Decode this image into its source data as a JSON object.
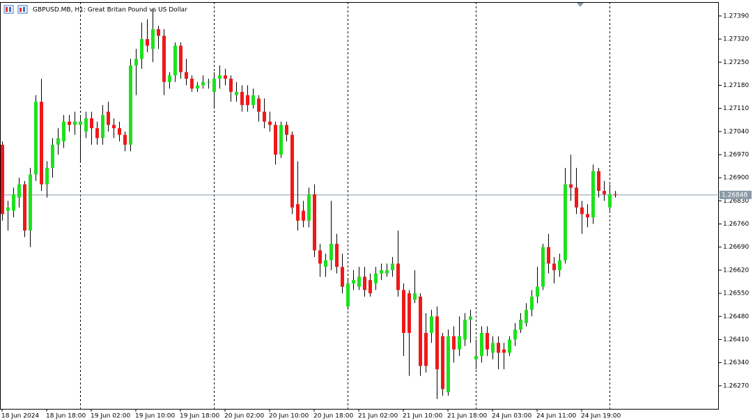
{
  "chart_data": {
    "type": "candlestick",
    "title": "GBPUSD.MB, H1:  Great Britan Pound vs US Dollar",
    "open": [
      1.27,
      1.268,
      1.268,
      1.2684,
      1.2688,
      1.2674,
      1.2691,
      1.2713,
      1.2688,
      1.2693,
      1.27,
      1.2701,
      1.2707,
      1.2706,
      1.2706,
      1.2704,
      1.2708,
      1.2705,
      1.2702,
      1.271,
      1.2706,
      1.2705,
      1.2703,
      1.27,
      1.2724,
      1.2726,
      1.2732,
      1.2729,
      1.2735,
      1.2733,
      1.2719,
      1.2721,
      1.273,
      1.2722,
      1.272,
      1.2717,
      1.2718,
      1.2719,
      1.2716,
      1.272,
      1.2721,
      1.272,
      1.2715,
      1.2716,
      1.2715,
      1.2712,
      1.2714,
      1.271,
      1.2707,
      1.2706,
      1.2697,
      1.2706,
      1.2703,
      1.2682,
      1.268,
      1.2677,
      1.2685,
      1.2668,
      1.2663,
      1.2665,
      1.267,
      1.2663,
      1.2651,
      1.2658,
      1.2657,
      1.266,
      1.2659,
      1.2658,
      1.2661,
      1.2661,
      1.2662,
      1.2664,
      1.2656,
      1.2655,
      1.2653,
      1.2654,
      1.2643,
      1.2643,
      1.2648,
      1.2642,
      1.2625,
      1.2642,
      1.2638,
      1.2641,
      1.2647,
      1.2635,
      1.2636,
      1.2643,
      1.2637,
      1.264,
      1.2638,
      1.2637,
      1.2641,
      1.2644,
      1.2646,
      1.265,
      1.2654,
      1.2657,
      1.2669,
      1.2664,
      1.2662,
      1.2665,
      1.2688,
      1.2687,
      1.2681,
      1.2679,
      1.2678,
      1.2692,
      1.2686,
      1.2681,
      1.2685
    ],
    "high": [
      1.2701,
      1.2683,
      1.2687,
      1.269,
      1.2689,
      1.2693,
      1.2715,
      1.272,
      1.2695,
      1.2702,
      1.2705,
      1.2709,
      1.2709,
      1.271,
      1.2709,
      1.271,
      1.271,
      1.2707,
      1.2712,
      1.2713,
      1.2708,
      1.2707,
      1.2704,
      1.2726,
      1.2729,
      1.2737,
      1.2738,
      1.2741,
      1.2736,
      1.2735,
      1.2722,
      1.2731,
      1.2731,
      1.2726,
      1.2721,
      1.2719,
      1.2721,
      1.272,
      1.2722,
      1.2724,
      1.2723,
      1.2721,
      1.2719,
      1.2718,
      1.2718,
      1.2717,
      1.2715,
      1.2714,
      1.271,
      1.2707,
      1.2707,
      1.2707,
      1.2704,
      1.2695,
      1.2683,
      1.2687,
      1.2688,
      1.267,
      1.2667,
      1.2683,
      1.2673,
      1.2667,
      1.2659,
      1.2662,
      1.2663,
      1.2663,
      1.2661,
      1.2663,
      1.2664,
      1.2664,
      1.2666,
      1.2674,
      1.2658,
      1.2656,
      1.2662,
      1.2655,
      1.2649,
      1.265,
      1.2651,
      1.2643,
      1.2644,
      1.2645,
      1.2648,
      1.2649,
      1.265,
      1.2641,
      1.2645,
      1.2645,
      1.2642,
      1.2642,
      1.264,
      1.2642,
      1.2646,
      1.2649,
      1.2652,
      1.2656,
      1.2663,
      1.267,
      1.2673,
      1.2666,
      1.2667,
      1.2693,
      1.2697,
      1.2693,
      1.2683,
      1.2682,
      1.2694,
      1.2693,
      1.2689,
      1.2688,
      1.2686
    ],
    "low": [
      1.2677,
      1.2674,
      1.2678,
      1.2681,
      1.2672,
      1.2669,
      1.2689,
      1.2686,
      1.2684,
      1.269,
      1.2697,
      1.2699,
      1.2704,
      1.2703,
      1.2695,
      1.2702,
      1.27,
      1.27,
      1.27,
      1.2704,
      1.2702,
      1.2701,
      1.2698,
      1.2698,
      1.2715,
      1.2723,
      1.2728,
      1.2725,
      1.2729,
      1.2715,
      1.2717,
      1.2719,
      1.272,
      1.2718,
      1.2716,
      1.2716,
      1.2717,
      1.2717,
      1.2711,
      1.2717,
      1.2718,
      1.2713,
      1.2713,
      1.271,
      1.271,
      1.2711,
      1.2707,
      1.2705,
      1.2704,
      1.2694,
      1.2696,
      1.2701,
      1.2679,
      1.2674,
      1.2675,
      1.2675,
      1.2666,
      1.266,
      1.266,
      1.2662,
      1.2661,
      1.2655,
      1.265,
      1.2656,
      1.2656,
      1.2654,
      1.2654,
      1.2656,
      1.2659,
      1.266,
      1.266,
      1.2654,
      1.2636,
      1.263,
      1.2652,
      1.263,
      1.2631,
      1.264,
      1.2623,
      1.2624,
      1.2624,
      1.2634,
      1.2636,
      1.2639,
      1.264,
      1.2632,
      1.2634,
      1.2636,
      1.2635,
      1.2632,
      1.2632,
      1.2636,
      1.2639,
      1.2643,
      1.2645,
      1.2648,
      1.2652,
      1.2656,
      1.2661,
      1.2658,
      1.266,
      1.2664,
      1.2683,
      1.2679,
      1.2673,
      1.2675,
      1.2676,
      1.2684,
      1.2683,
      1.268,
      1.2684
    ],
    "close": [
      1.2679,
      1.2681,
      1.2685,
      1.2688,
      1.2674,
      1.2691,
      1.2713,
      1.2688,
      1.2693,
      1.27,
      1.2702,
      1.2707,
      1.2706,
      1.2707,
      1.2707,
      1.2708,
      1.2705,
      1.2702,
      1.2709,
      1.2706,
      1.2705,
      1.2703,
      1.27,
      1.2724,
      1.2726,
      1.2732,
      1.273,
      1.2735,
      1.2733,
      1.2719,
      1.2721,
      1.273,
      1.2722,
      1.272,
      1.2717,
      1.2718,
      1.2719,
      1.2719,
      1.272,
      1.2721,
      1.272,
      1.2716,
      1.2716,
      1.2712,
      1.2712,
      1.2715,
      1.271,
      1.2707,
      1.2706,
      1.2697,
      1.2706,
      1.2703,
      1.2681,
      1.2677,
      1.2677,
      1.2685,
      1.2668,
      1.2664,
      1.2665,
      1.267,
      1.2663,
      1.2657,
      1.2658,
      1.2659,
      1.266,
      1.2656,
      1.2655,
      1.2661,
      1.2662,
      1.2662,
      1.2664,
      1.2656,
      1.2643,
      1.2643,
      1.2655,
      1.2633,
      1.2633,
      1.2648,
      1.2632,
      1.2626,
      1.2642,
      1.2638,
      1.2642,
      1.2647,
      1.2648,
      1.2636,
      1.2643,
      1.2638,
      1.264,
      1.2637,
      1.2637,
      1.2641,
      1.2644,
      1.2647,
      1.265,
      1.2654,
      1.2657,
      1.2669,
      1.2664,
      1.2662,
      1.2665,
      1.2688,
      1.2687,
      1.2681,
      1.2679,
      1.2678,
      1.2692,
      1.2686,
      1.2685,
      1.2685,
      1.26848
    ],
    "up_color": "#1ee11e",
    "down_color": "#f01818",
    "last_price": 1.26848,
    "ylim": [
      1.262,
      1.27432
    ],
    "yticks": [
      {
        "value": 1.2739,
        "label": "1.27390"
      },
      {
        "value": 1.2732,
        "label": "1.27320"
      },
      {
        "value": 1.2725,
        "label": "1.27250"
      },
      {
        "value": 1.2718,
        "label": "1.27180"
      },
      {
        "value": 1.2711,
        "label": "1.27110"
      },
      {
        "value": 1.2704,
        "label": "1.27040"
      },
      {
        "value": 1.2697,
        "label": "1.26970"
      },
      {
        "value": 1.269,
        "label": "1.26900"
      },
      {
        "value": 1.2683,
        "label": "1.26830"
      },
      {
        "value": 1.2676,
        "label": "1.26760"
      },
      {
        "value": 1.2669,
        "label": "1.26690"
      },
      {
        "value": 1.2662,
        "label": "1.26620"
      },
      {
        "value": 1.2655,
        "label": "1.26550"
      },
      {
        "value": 1.2648,
        "label": "1.26480"
      },
      {
        "value": 1.2641,
        "label": "1.26410"
      },
      {
        "value": 1.2634,
        "label": "1.26340"
      },
      {
        "value": 1.2627,
        "label": "1.26270"
      }
    ],
    "xticks": [
      {
        "value": 0,
        "label": "18 Jun 2024"
      },
      {
        "value": 8,
        "label": "18 Jun 18:00"
      },
      {
        "value": 16,
        "label": "19 Jun 02:00"
      },
      {
        "value": 24,
        "label": "19 Jun 10:00"
      },
      {
        "value": 32,
        "label": "19 Jun 18:00"
      },
      {
        "value": 40,
        "label": "20 Jun 02:00"
      },
      {
        "value": 48,
        "label": "20 Jun 10:00"
      },
      {
        "value": 56,
        "label": "20 Jun 18:00"
      },
      {
        "value": 64,
        "label": "21 Jun 02:00"
      },
      {
        "value": 72,
        "label": "21 Jun 10:00"
      },
      {
        "value": 80,
        "label": "21 Jun 18:00"
      },
      {
        "value": 88,
        "label": "24 Jun 03:00"
      },
      {
        "value": 96,
        "label": "24 Jun 11:00"
      },
      {
        "value": 104,
        "label": "24 Jun 19:00"
      }
    ],
    "day_separators": [
      14,
      38,
      62,
      85,
      109
    ]
  }
}
